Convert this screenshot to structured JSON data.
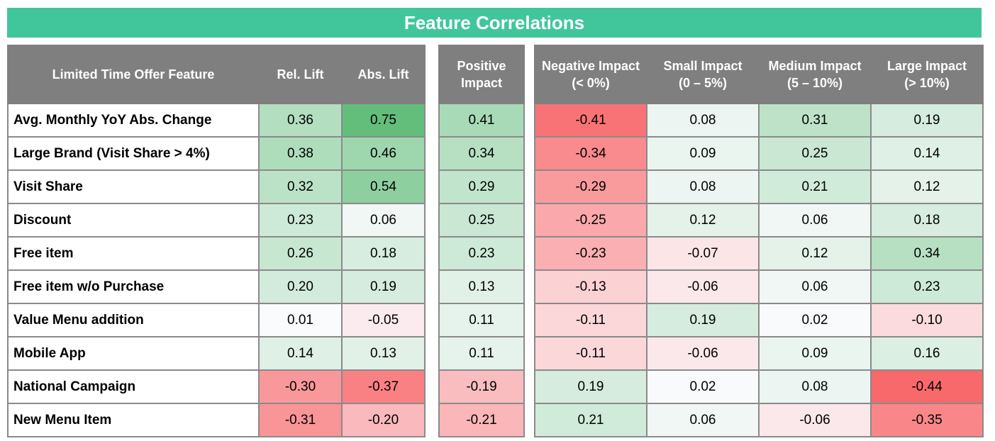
{
  "title": "Feature Correlations",
  "chart_data": {
    "type": "table",
    "title": "Feature Correlations",
    "columns": [
      "Limited Time Offer Feature",
      "Rel. Lift",
      "Abs. Lift",
      "Positive Impact",
      "Negative Impact (< 0%)",
      "Small Impact (0 – 5%)",
      "Medium Impact (5 – 10%)",
      "Large Impact (> 10%)"
    ],
    "header_lines": {
      "rel_lift": [
        "Rel. Lift"
      ],
      "abs_lift": [
        "Abs. Lift"
      ],
      "positive": [
        "Positive",
        "Impact"
      ],
      "negative": [
        "Negative Impact",
        "(< 0%)"
      ],
      "small": [
        "Small Impact",
        "(0 – 5%)"
      ],
      "medium": [
        "Medium Impact",
        "(5 – 10%)"
      ],
      "large": [
        "Large Impact",
        "(> 10%)"
      ]
    },
    "rows": [
      {
        "feature": "Avg. Monthly YoY Abs. Change",
        "values": [
          "0.36",
          "0.75",
          "0.41",
          "-0.41",
          "0.08",
          "0.31",
          "0.19"
        ]
      },
      {
        "feature": "Large Brand (Visit Share > 4%)",
        "values": [
          "0.38",
          "0.46",
          "0.34",
          "-0.34",
          "0.09",
          "0.25",
          "0.14"
        ]
      },
      {
        "feature": "Visit Share",
        "values": [
          "0.32",
          "0.54",
          "0.29",
          "-0.29",
          "0.08",
          "0.21",
          "0.12"
        ]
      },
      {
        "feature": "Discount",
        "values": [
          "0.23",
          "0.06",
          "0.25",
          "-0.25",
          "0.12",
          "0.06",
          "0.18"
        ]
      },
      {
        "feature": "Free item",
        "values": [
          "0.26",
          "0.18",
          "0.23",
          "-0.23",
          "-0.07",
          "0.12",
          "0.34"
        ]
      },
      {
        "feature": "Free item w/o Purchase",
        "values": [
          "0.20",
          "0.19",
          "0.13",
          "-0.13",
          "-0.06",
          "0.06",
          "0.23"
        ]
      },
      {
        "feature": "Value Menu addition",
        "values": [
          "0.01",
          "-0.05",
          "0.11",
          "-0.11",
          "0.19",
          "0.02",
          "-0.10"
        ]
      },
      {
        "feature": "Mobile App",
        "values": [
          "0.14",
          "0.13",
          "0.11",
          "-0.11",
          "-0.06",
          "0.09",
          "0.16"
        ]
      },
      {
        "feature": "National Campaign",
        "values": [
          "-0.30",
          "-0.37",
          "-0.19",
          "0.19",
          "0.02",
          "0.08",
          "-0.44"
        ]
      },
      {
        "feature": "New Menu Item",
        "values": [
          "-0.31",
          "-0.20",
          "-0.21",
          "0.21",
          "0.06",
          "-0.06",
          "-0.35"
        ]
      }
    ]
  },
  "colors": {
    "title_bar": "#41c69b",
    "header": "#7f7f7f",
    "positive_max": "#63be7b",
    "negative_max": "#f8696b",
    "neutral": "#fcfcff"
  }
}
